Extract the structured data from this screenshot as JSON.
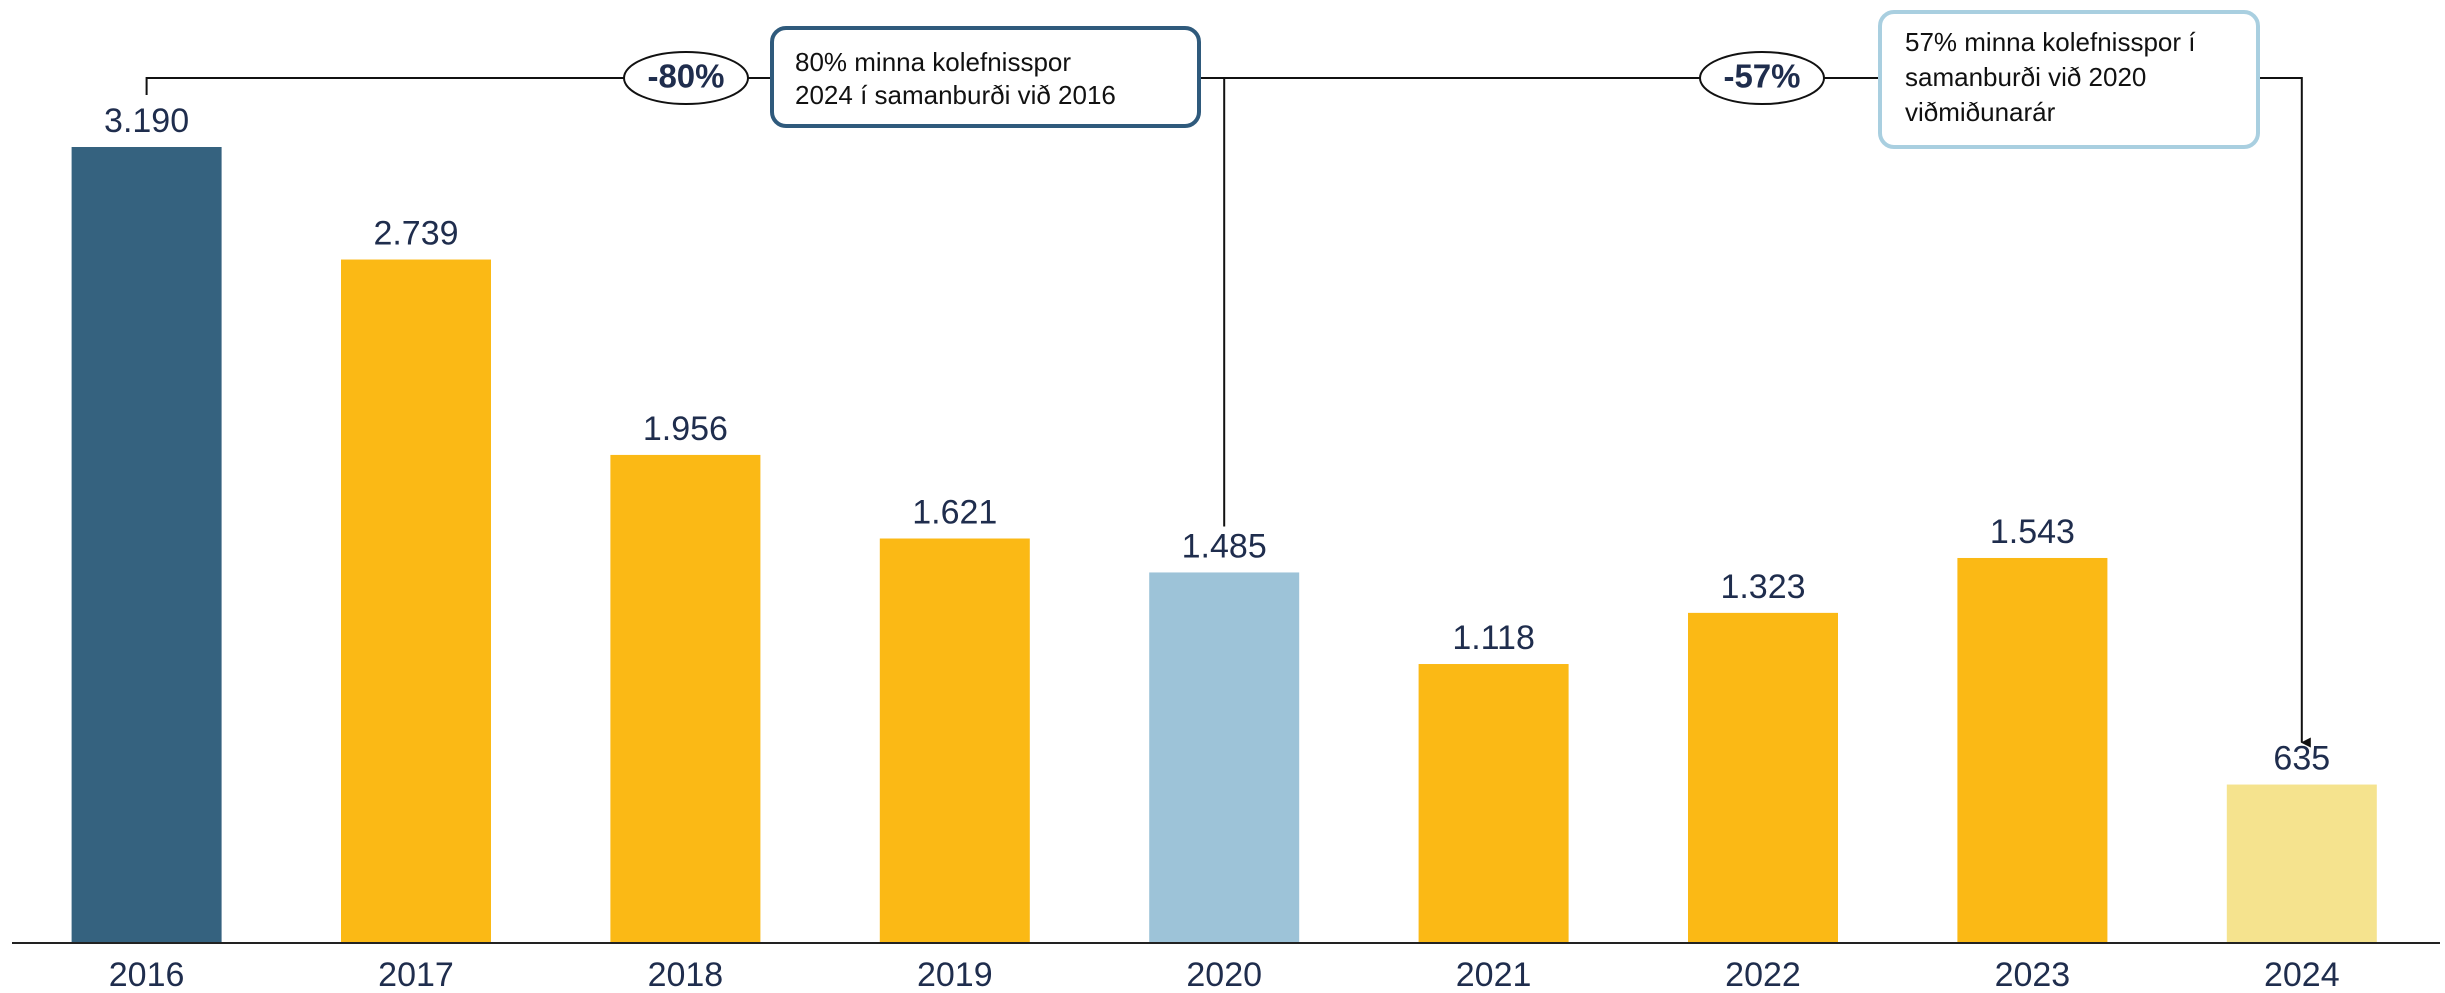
{
  "chart_data": {
    "type": "bar",
    "categories": [
      "2016",
      "2017",
      "2018",
      "2019",
      "2020",
      "2021",
      "2022",
      "2023",
      "2024"
    ],
    "values": [
      3190,
      2739,
      1956,
      1621,
      1485,
      1118,
      1323,
      1543,
      635
    ],
    "value_labels": [
      "3.190",
      "2.739",
      "1.956",
      "1.621",
      "1.485",
      "1.118",
      "1.323",
      "1.543",
      "635"
    ],
    "colors": [
      "#35627f",
      "#fbb915",
      "#fbb915",
      "#fbb915",
      "#9dc3d8",
      "#fbb915",
      "#fbb915",
      "#fbb915",
      "#f5e38e"
    ],
    "ylim": [
      0,
      3190
    ],
    "annotations": [
      {
        "badge": "-80%",
        "text": [
          "80% minna kolefnisspor",
          "2024 í samanburði við 2016"
        ]
      },
      {
        "badge": "-57%",
        "text": [
          "57% minna kolefnisspor í",
          "samanburði við 2020",
          "viðmiðunarár"
        ]
      }
    ]
  }
}
